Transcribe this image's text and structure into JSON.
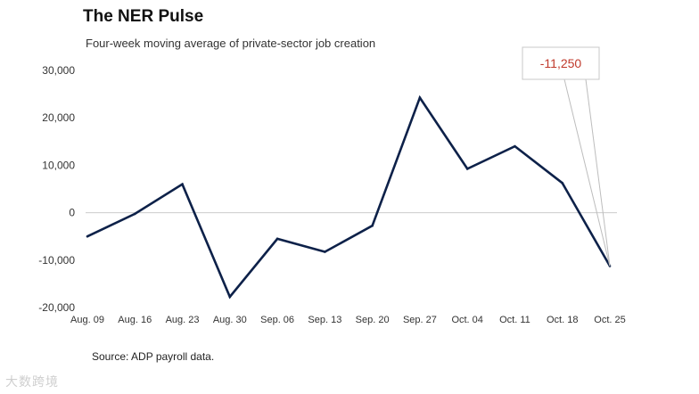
{
  "header": {
    "title": "The NER Pulse",
    "subtitle": "Four-week moving average of private-sector job creation"
  },
  "footer": {
    "source": "Source: ADP payroll data.",
    "watermark": "大数跨境"
  },
  "colors": {
    "line": "#0d2149",
    "callout_text": "#c0392b",
    "zero_line": "#cccccc"
  },
  "chart_data": {
    "type": "line",
    "title": "The NER Pulse",
    "subtitle": "Four-week moving average of private-sector job creation",
    "xlabel": "",
    "ylabel": "",
    "categories": [
      "Aug. 09",
      "Aug. 16",
      "Aug. 23",
      "Aug. 30",
      "Sep. 06",
      "Sep. 13",
      "Sep. 20",
      "Sep. 27",
      "Oct. 04",
      "Oct. 11",
      "Oct. 18",
      "Oct. 25"
    ],
    "series": [
      {
        "values": [
          -5000,
          -250,
          6000,
          -17750,
          -5500,
          -8250,
          -2750,
          24250,
          9250,
          14000,
          6250,
          -11250
        ]
      }
    ],
    "ylim": [
      -20000,
      30000
    ],
    "yticks": [
      30000,
      20000,
      10000,
      0,
      -10000,
      -20000
    ],
    "ytick_labels": [
      "30,000",
      "20,000",
      "10,000",
      "0",
      "-10,000",
      "-20,000"
    ],
    "annotation": {
      "category": "Oct. 25",
      "label": "-11,250"
    },
    "grid": false,
    "legend": "none"
  }
}
